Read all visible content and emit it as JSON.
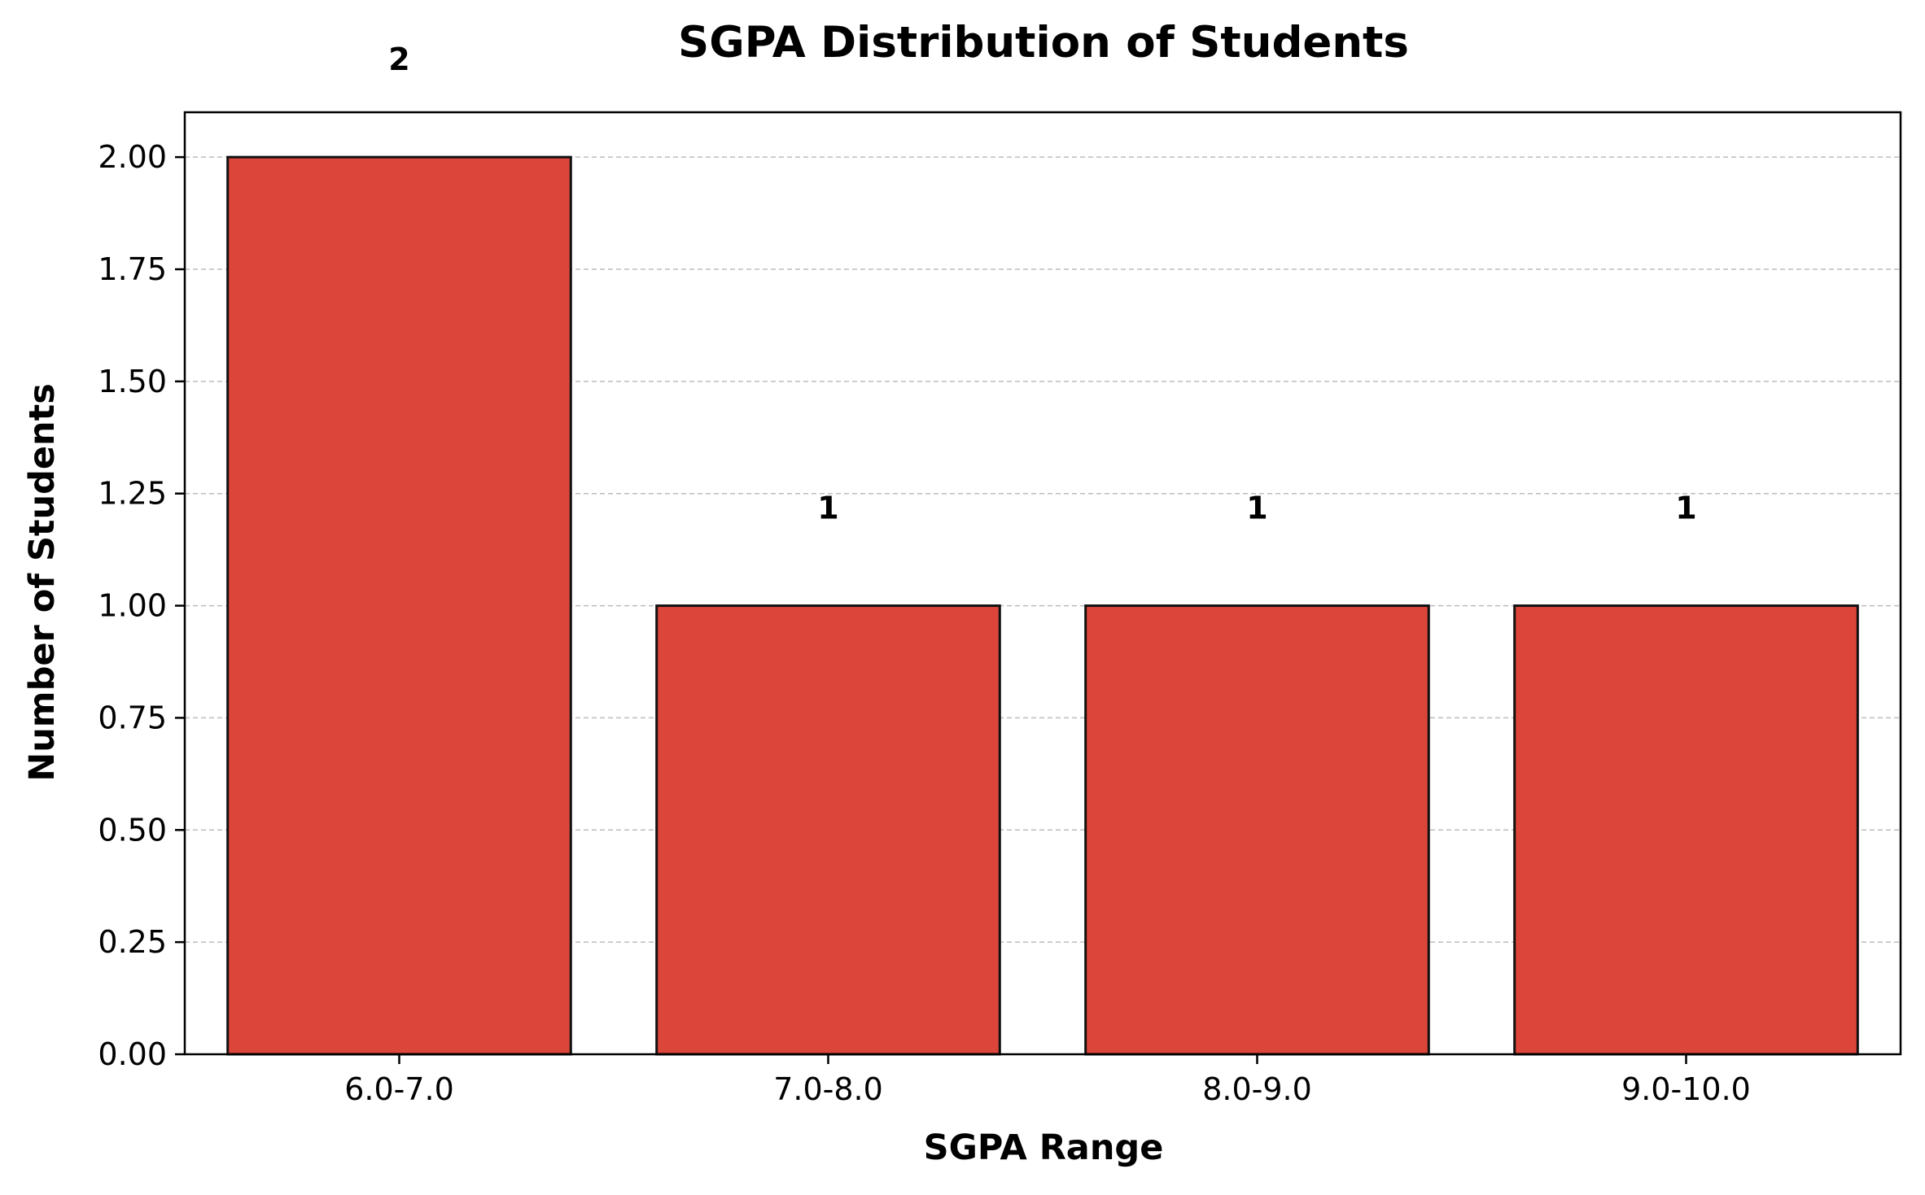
{
  "chart_data": {
    "type": "bar",
    "title": "SGPA Distribution of Students",
    "xlabel": "SGPA Range",
    "ylabel": "Number of Students",
    "categories": [
      "6.0-7.0",
      "7.0-8.0",
      "8.0-9.0",
      "9.0-10.0"
    ],
    "values": [
      2,
      1,
      1,
      1
    ],
    "data_labels": [
      "2",
      "1",
      "1",
      "1"
    ],
    "ylim": [
      0,
      2.1
    ],
    "yticks": [
      0,
      0.25,
      0.5,
      0.75,
      1.0,
      1.25,
      1.5,
      1.75,
      2.0
    ],
    "ytick_labels": [
      "0.00",
      "0.25",
      "0.50",
      "0.75",
      "1.00",
      "1.25",
      "1.50",
      "1.75",
      "2.00"
    ],
    "grid": "y-dashed",
    "legend": "none",
    "colors": {
      "bar_fill": "#db453a",
      "bar_edge": "#111111",
      "grid": "#bdbdbd",
      "axis": "#000000"
    }
  }
}
